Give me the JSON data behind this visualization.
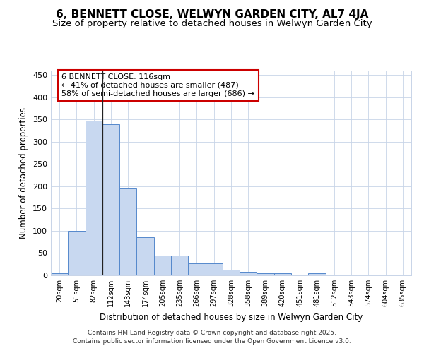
{
  "title": "6, BENNETT CLOSE, WELWYN GARDEN CITY, AL7 4JA",
  "subtitle": "Size of property relative to detached houses in Welwyn Garden City",
  "xlabel": "Distribution of detached houses by size in Welwyn Garden City",
  "ylabel": "Number of detached properties",
  "categories": [
    "20sqm",
    "51sqm",
    "82sqm",
    "112sqm",
    "143sqm",
    "174sqm",
    "205sqm",
    "235sqm",
    "266sqm",
    "297sqm",
    "328sqm",
    "358sqm",
    "389sqm",
    "420sqm",
    "451sqm",
    "481sqm",
    "512sqm",
    "543sqm",
    "574sqm",
    "604sqm",
    "635sqm"
  ],
  "values": [
    5,
    100,
    348,
    340,
    196,
    86,
    45,
    45,
    27,
    27,
    12,
    8,
    5,
    5,
    1,
    5,
    1,
    1,
    1,
    1,
    1
  ],
  "bar_color": "#c8d8f0",
  "bar_edge_color": "#5588cc",
  "grid_color": "#c8d4e8",
  "bg_color": "#ffffff",
  "vline_x": 3,
  "vline_color": "#222222",
  "annotation_text": "6 BENNETT CLOSE: 116sqm\n← 41% of detached houses are smaller (487)\n58% of semi-detached houses are larger (686) →",
  "annotation_bg": "#ffffff",
  "annotation_edge": "#cc0000",
  "ylim": [
    0,
    460
  ],
  "yticks": [
    0,
    50,
    100,
    150,
    200,
    250,
    300,
    350,
    400,
    450
  ],
  "footer1": "Contains HM Land Registry data © Crown copyright and database right 2025.",
  "footer2": "Contains public sector information licensed under the Open Government Licence v3.0."
}
